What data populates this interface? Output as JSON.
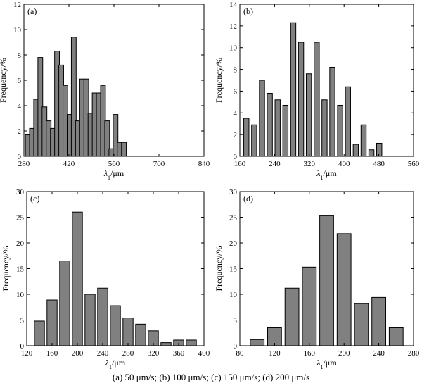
{
  "caption": "(a) 50 μm/s; (b) 100 μm/s; (c) 150  μm/s; (d) 200 μm/s",
  "colors": {
    "bar_fill": "#808080",
    "bar_stroke": "#000000",
    "axis": "#000000"
  },
  "chart_data": [
    {
      "type": "bar",
      "panel_label": "(a)",
      "xlabel": "λ1/μm",
      "ylabel": "Frequency/%",
      "xlim": [
        280,
        840
      ],
      "ylim": [
        0,
        12
      ],
      "xticks": [
        280,
        420,
        560,
        700,
        840
      ],
      "yticks": [
        0,
        2,
        4,
        6,
        8,
        10,
        12
      ],
      "bar_width": 15,
      "x": [
        292,
        305,
        318,
        331,
        344,
        357,
        370,
        383,
        396,
        409,
        422,
        435,
        448,
        461,
        474,
        487,
        500,
        513,
        526,
        539,
        552,
        565,
        578,
        591,
        604,
        617,
        630,
        643,
        656,
        669,
        682,
        695,
        708,
        721,
        734,
        747,
        760,
        773,
        786
      ],
      "values": [
        1.7,
        2.2,
        4.5,
        7.8,
        3.9,
        2.8,
        2.2,
        8.3,
        7.2,
        5.6,
        3.3,
        9.4,
        2.8,
        6.1,
        6.1,
        3.4,
        5.0,
        5.0,
        5.6,
        2.8,
        0.6,
        3.3,
        1.1,
        1.1,
        0,
        0,
        0,
        0,
        0,
        0,
        0,
        0,
        0,
        0,
        0,
        0,
        0,
        0,
        0
      ],
      "grid": false
    },
    {
      "type": "bar",
      "panel_label": "(b)",
      "xlabel": "λ1/μm",
      "ylabel": "Frequency/%",
      "xlim": [
        160,
        560
      ],
      "ylim": [
        0,
        14
      ],
      "xticks": [
        160,
        240,
        320,
        400,
        480,
        560
      ],
      "yticks": [
        0,
        2,
        4,
        6,
        8,
        10,
        12,
        14
      ],
      "bar_width": 12,
      "x": [
        175,
        193,
        211,
        229,
        247,
        265,
        283,
        301,
        319,
        337,
        355,
        373,
        391,
        409,
        427,
        445,
        463,
        481,
        499,
        517
      ],
      "values": [
        3.5,
        2.9,
        7.0,
        5.8,
        5.2,
        4.7,
        12.3,
        10.5,
        7.6,
        10.5,
        5.2,
        8.2,
        4.7,
        6.4,
        1.1,
        2.9,
        0.6,
        1.2,
        0,
        0
      ],
      "grid": false
    },
    {
      "type": "bar",
      "panel_label": "(c)",
      "xlabel": "λ1/μm",
      "ylabel": "Frequency/%",
      "xlim": [
        120,
        400
      ],
      "ylim": [
        0,
        30
      ],
      "xticks": [
        120,
        160,
        200,
        240,
        280,
        320,
        360,
        400
      ],
      "yticks": [
        0,
        5,
        10,
        15,
        20,
        25,
        30
      ],
      "bar_width": 16,
      "x": [
        140,
        160,
        180,
        200,
        220,
        240,
        260,
        280,
        300,
        320,
        340,
        360,
        380
      ],
      "values": [
        4.8,
        8.9,
        16.5,
        26.0,
        10.0,
        11.2,
        7.8,
        5.4,
        4.2,
        2.9,
        0.6,
        1.1,
        1.1
      ],
      "grid": false
    },
    {
      "type": "bar",
      "panel_label": "(d)",
      "xlabel": "λ1/μm",
      "ylabel": "Frequency/%",
      "xlim": [
        80,
        280
      ],
      "ylim": [
        0,
        30
      ],
      "xticks": [
        80,
        120,
        160,
        200,
        240,
        280
      ],
      "yticks": [
        0,
        5,
        10,
        15,
        20,
        25,
        30
      ],
      "bar_width": 16,
      "x": [
        100,
        120,
        140,
        160,
        180,
        200,
        220,
        240,
        260
      ],
      "values": [
        1.2,
        3.5,
        11.2,
        15.3,
        25.3,
        21.8,
        8.2,
        9.4,
        3.5
      ],
      "grid": false
    }
  ]
}
